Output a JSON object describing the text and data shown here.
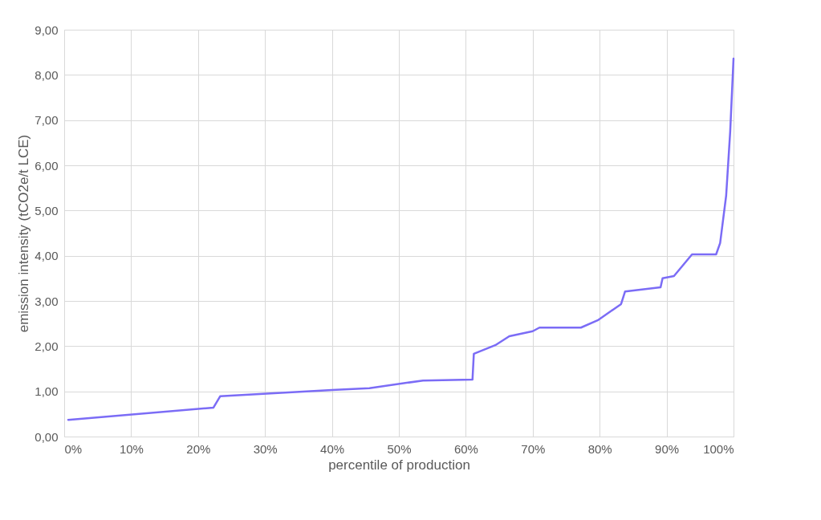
{
  "chart_data": {
    "type": "line",
    "xlabel": "percentile of production",
    "ylabel": "emission intensity (tCO2e/t LCE)",
    "x": [
      0.6,
      22.3,
      23.3,
      40,
      45.6,
      53.6,
      61.0,
      61.2,
      64.4,
      66.5,
      70,
      71,
      77.2,
      79.7,
      83.2,
      83.8,
      89.1,
      89.4,
      91.1,
      93.8,
      97.4,
      98.0,
      98.9,
      99.5,
      100
    ],
    "series": [
      {
        "color": "#7b6cf6",
        "values": [
          0.37,
          0.64,
          0.89,
          1.03,
          1.07,
          1.24,
          1.26,
          1.83,
          2.02,
          2.22,
          2.33,
          2.41,
          2.41,
          2.57,
          2.93,
          3.21,
          3.3,
          3.5,
          3.55,
          4.03,
          4.03,
          4.28,
          5.33,
          6.74,
          8.36
        ]
      }
    ],
    "xlim": [
      0,
      100
    ],
    "xticks": [
      {
        "value": 0,
        "label": "0%"
      },
      {
        "value": 10,
        "label": "10%"
      },
      {
        "value": 20,
        "label": "20%"
      },
      {
        "value": 30,
        "label": "30%"
      },
      {
        "value": 40,
        "label": "40%"
      },
      {
        "value": 50,
        "label": "50%"
      },
      {
        "value": 60,
        "label": "60%"
      },
      {
        "value": 70,
        "label": "70%"
      },
      {
        "value": 80,
        "label": "80%"
      },
      {
        "value": 90,
        "label": "90%"
      },
      {
        "value": 100,
        "label": "100%"
      }
    ],
    "ylim": [
      0,
      9
    ],
    "yticks": [
      {
        "value": 0,
        "label": "0,00"
      },
      {
        "value": 1,
        "label": "1,00"
      },
      {
        "value": 2,
        "label": "2,00"
      },
      {
        "value": 3,
        "label": "3,00"
      },
      {
        "value": 4,
        "label": "4,00"
      },
      {
        "value": 5,
        "label": "5,00"
      },
      {
        "value": 6,
        "label": "6,00"
      },
      {
        "value": 7,
        "label": "7,00"
      },
      {
        "value": 8,
        "label": "8,00"
      },
      {
        "value": 9,
        "label": "9,00"
      }
    ],
    "grid": true,
    "marker": "none",
    "line_style": "solid"
  }
}
